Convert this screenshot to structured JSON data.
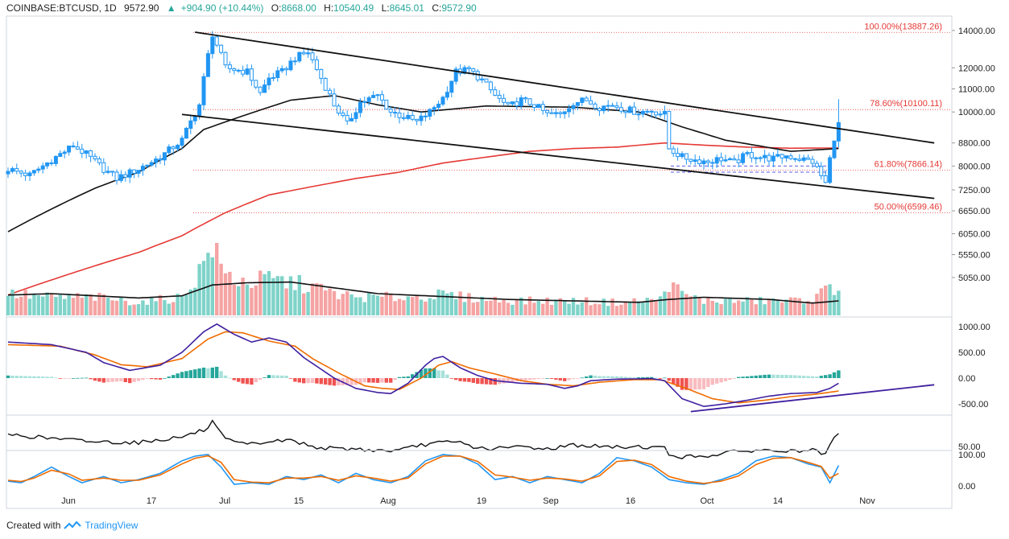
{
  "header": {
    "symbol": "COINBASE:BTCUSD, 1D",
    "last": "9572.90",
    "change_arrow": "▲",
    "change": "+904.90 (+10.44%)",
    "open_label": "O:",
    "open": "8668.00",
    "high_label": "H:",
    "high": "10540.49",
    "low_label": "L:",
    "low": "8645.01",
    "close_label": "C:",
    "close": "9572.90"
  },
  "footer": {
    "created_with": "Created with",
    "brand": "TradingView"
  },
  "colors": {
    "up": "#2196f3",
    "down": "#2196f3",
    "vol_up": "#7fd3c9",
    "vol_down": "#f5a3a3",
    "ma_short": "#111111",
    "ma_long": "#e53935",
    "macd": "#3f1fa0",
    "signal": "#ef6c00",
    "hist_up": "#26a69a",
    "hist_up_light": "#a6e1da",
    "hist_down": "#ef5350",
    "hist_down_light": "#f8bcc0",
    "stoch_k": "#2196f3",
    "stoch_d": "#ef6c00",
    "fib": "#e53935",
    "trend": "#111111",
    "macd_trend": "#3f1fa0",
    "support": "#5c5ce6"
  },
  "chart_data": {
    "type": "candlestick",
    "interval": "1D",
    "x_tick_labels": [
      "Jun",
      "17",
      "Jul",
      "15",
      "Aug",
      "19",
      "Sep",
      "16",
      "Oct",
      "14",
      "Nov"
    ],
    "price_axis": {
      "scale": "log",
      "ticks": [
        "14000.00",
        "12000.00",
        "11000.00",
        "10000.00",
        "8800.00",
        "8000.00",
        "7250.00",
        "6650.00",
        "6050.00",
        "5550.00",
        "5050.00"
      ]
    },
    "fib_levels": [
      {
        "label": "100.00%(13887.26)",
        "value": 13887.26
      },
      {
        "label": "78.60%(10100.11)",
        "value": 10100.11
      },
      {
        "label": "61.80%(7866.14)",
        "value": 7866.14
      },
      {
        "label": "50.00%(6599.46)",
        "value": 6599.46
      }
    ],
    "price_keypoints": [
      [
        0,
        7900
      ],
      [
        5,
        7700
      ],
      [
        10,
        8200
      ],
      [
        15,
        8700
      ],
      [
        18,
        8400
      ],
      [
        22,
        7900
      ],
      [
        25,
        7600
      ],
      [
        30,
        7900
      ],
      [
        35,
        8300
      ],
      [
        40,
        8900
      ],
      [
        44,
        10300
      ],
      [
        47,
        13800
      ],
      [
        50,
        12000
      ],
      [
        55,
        11800
      ],
      [
        58,
        10800
      ],
      [
        60,
        11500
      ],
      [
        63,
        11800
      ],
      [
        66,
        12500
      ],
      [
        69,
        12800
      ],
      [
        72,
        11500
      ],
      [
        75,
        10300
      ],
      [
        78,
        9500
      ],
      [
        81,
        10400
      ],
      [
        85,
        10700
      ],
      [
        88,
        10000
      ],
      [
        91,
        9800
      ],
      [
        94,
        9600
      ],
      [
        97,
        10000
      ],
      [
        100,
        10600
      ],
      [
        103,
        11800
      ],
      [
        106,
        11900
      ],
      [
        109,
        11400
      ],
      [
        112,
        10700
      ],
      [
        115,
        10200
      ],
      [
        118,
        10500
      ],
      [
        121,
        10300
      ],
      [
        124,
        9900
      ],
      [
        127,
        9900
      ],
      [
        130,
        10400
      ],
      [
        133,
        10500
      ],
      [
        136,
        10200
      ],
      [
        139,
        10300
      ],
      [
        142,
        10100
      ],
      [
        145,
        10000
      ],
      [
        148,
        10050
      ],
      [
        151,
        9900
      ],
      [
        152,
        8600
      ],
      [
        155,
        8300
      ],
      [
        158,
        8200
      ],
      [
        161,
        8150
      ],
      [
        164,
        8250
      ],
      [
        167,
        8100
      ],
      [
        170,
        8400
      ],
      [
        173,
        8300
      ],
      [
        176,
        8250
      ],
      [
        179,
        8350
      ],
      [
        182,
        8250
      ],
      [
        185,
        8150
      ],
      [
        188,
        7450
      ],
      [
        190,
        9000
      ],
      [
        191,
        9572.9
      ]
    ],
    "ma50_keypoints": [
      [
        0,
        6100
      ],
      [
        10,
        6700
      ],
      [
        20,
        7300
      ],
      [
        30,
        7800
      ],
      [
        40,
        8600
      ],
      [
        45,
        9300
      ],
      [
        55,
        9900
      ],
      [
        65,
        10500
      ],
      [
        75,
        10700
      ],
      [
        85,
        10300
      ],
      [
        95,
        10000
      ],
      [
        110,
        10250
      ],
      [
        130,
        10200
      ],
      [
        145,
        10000
      ],
      [
        155,
        9400
      ],
      [
        165,
        8900
      ],
      [
        180,
        8500
      ],
      [
        191,
        8600
      ]
    ],
    "ma200_keypoints": [
      [
        0,
        4700
      ],
      [
        10,
        5000
      ],
      [
        20,
        5300
      ],
      [
        30,
        5600
      ],
      [
        40,
        6000
      ],
      [
        50,
        6600
      ],
      [
        60,
        7100
      ],
      [
        70,
        7350
      ],
      [
        80,
        7600
      ],
      [
        90,
        7800
      ],
      [
        100,
        8100
      ],
      [
        110,
        8300
      ],
      [
        120,
        8500
      ],
      [
        130,
        8600
      ],
      [
        140,
        8650
      ],
      [
        151,
        8800
      ],
      [
        160,
        8720
      ],
      [
        170,
        8650
      ],
      [
        180,
        8610
      ],
      [
        191,
        8620
      ]
    ],
    "trendlines": [
      {
        "name": "upper channel",
        "from": [
          43,
          13900
        ],
        "to": [
          213,
          8800
        ]
      },
      {
        "name": "lower channel",
        "from": [
          40,
          9900
        ],
        "to": [
          213,
          7000
        ]
      }
    ],
    "support_levels": [
      8000,
      7800
    ],
    "volume_keypoints": [
      [
        0,
        0.3
      ],
      [
        10,
        0.25
      ],
      [
        20,
        0.25
      ],
      [
        30,
        0.18
      ],
      [
        40,
        0.25
      ],
      [
        44,
        0.6
      ],
      [
        47,
        1.0
      ],
      [
        50,
        0.55
      ],
      [
        55,
        0.45
      ],
      [
        60,
        0.5
      ],
      [
        65,
        0.45
      ],
      [
        70,
        0.4
      ],
      [
        75,
        0.3
      ],
      [
        80,
        0.25
      ],
      [
        90,
        0.25
      ],
      [
        100,
        0.28
      ],
      [
        110,
        0.22
      ],
      [
        120,
        0.2
      ],
      [
        130,
        0.2
      ],
      [
        140,
        0.18
      ],
      [
        150,
        0.22
      ],
      [
        152,
        0.45
      ],
      [
        155,
        0.3
      ],
      [
        160,
        0.2
      ],
      [
        170,
        0.2
      ],
      [
        180,
        0.2
      ],
      [
        186,
        0.25
      ],
      [
        188,
        0.35
      ],
      [
        191,
        0.4
      ]
    ],
    "volume_ma_keypoints": [
      [
        0,
        0.28
      ],
      [
        10,
        0.3
      ],
      [
        20,
        0.27
      ],
      [
        30,
        0.24
      ],
      [
        40,
        0.27
      ],
      [
        47,
        0.42
      ],
      [
        55,
        0.45
      ],
      [
        65,
        0.46
      ],
      [
        75,
        0.38
      ],
      [
        85,
        0.3
      ],
      [
        100,
        0.26
      ],
      [
        115,
        0.22
      ],
      [
        130,
        0.2
      ],
      [
        145,
        0.18
      ],
      [
        152,
        0.22
      ],
      [
        160,
        0.25
      ],
      [
        175,
        0.22
      ],
      [
        185,
        0.17
      ],
      [
        191,
        0.2
      ]
    ],
    "macd": {
      "axis_ticks": [
        "1000.00",
        "500.00",
        "0.00",
        "-500.00"
      ],
      "macd_keypoints": [
        [
          0,
          700
        ],
        [
          10,
          650
        ],
        [
          18,
          500
        ],
        [
          22,
          300
        ],
        [
          28,
          150
        ],
        [
          35,
          250
        ],
        [
          40,
          500
        ],
        [
          45,
          900
        ],
        [
          48,
          1050
        ],
        [
          52,
          850
        ],
        [
          56,
          700
        ],
        [
          60,
          780
        ],
        [
          64,
          700
        ],
        [
          68,
          400
        ],
        [
          75,
          0
        ],
        [
          80,
          -200
        ],
        [
          85,
          -280
        ],
        [
          88,
          -300
        ],
        [
          92,
          -100
        ],
        [
          96,
          250
        ],
        [
          98,
          380
        ],
        [
          100,
          420
        ],
        [
          104,
          200
        ],
        [
          108,
          50
        ],
        [
          112,
          -50
        ],
        [
          118,
          -100
        ],
        [
          124,
          -120
        ],
        [
          128,
          -200
        ],
        [
          131,
          -150
        ],
        [
          134,
          -50
        ],
        [
          140,
          -20
        ],
        [
          148,
          -10
        ],
        [
          151,
          -50
        ],
        [
          155,
          -400
        ],
        [
          160,
          -550
        ],
        [
          165,
          -500
        ],
        [
          170,
          -430
        ],
        [
          175,
          -350
        ],
        [
          180,
          -300
        ],
        [
          186,
          -280
        ],
        [
          189,
          -200
        ],
        [
          191,
          -100
        ]
      ],
      "signal_keypoints": [
        [
          0,
          650
        ],
        [
          12,
          620
        ],
        [
          20,
          450
        ],
        [
          26,
          260
        ],
        [
          32,
          220
        ],
        [
          40,
          380
        ],
        [
          46,
          760
        ],
        [
          50,
          900
        ],
        [
          54,
          880
        ],
        [
          60,
          720
        ],
        [
          66,
          620
        ],
        [
          70,
          380
        ],
        [
          76,
          100
        ],
        [
          82,
          -150
        ],
        [
          86,
          -200
        ],
        [
          90,
          -220
        ],
        [
          95,
          0
        ],
        [
          99,
          250
        ],
        [
          102,
          320
        ],
        [
          106,
          200
        ],
        [
          112,
          80
        ],
        [
          118,
          -50
        ],
        [
          124,
          -120
        ],
        [
          130,
          -150
        ],
        [
          136,
          -80
        ],
        [
          144,
          -30
        ],
        [
          150,
          -30
        ],
        [
          156,
          -200
        ],
        [
          162,
          -400
        ],
        [
          168,
          -480
        ],
        [
          174,
          -430
        ],
        [
          180,
          -360
        ],
        [
          186,
          -310
        ],
        [
          191,
          -250
        ]
      ],
      "trendline": {
        "from": [
          157,
          -650
        ],
        "to": [
          213,
          -130
        ]
      }
    },
    "rsi": {
      "axis_ticks": [
        "50.00"
      ],
      "keypoints": [
        [
          0,
          65
        ],
        [
          10,
          60
        ],
        [
          20,
          56
        ],
        [
          30,
          55
        ],
        [
          40,
          62
        ],
        [
          46,
          72
        ],
        [
          47,
          80
        ],
        [
          50,
          58
        ],
        [
          55,
          52
        ],
        [
          60,
          56
        ],
        [
          65,
          58
        ],
        [
          70,
          50
        ],
        [
          75,
          47
        ],
        [
          80,
          47
        ],
        [
          85,
          45
        ],
        [
          90,
          45
        ],
        [
          95,
          52
        ],
        [
          100,
          55
        ],
        [
          104,
          55
        ],
        [
          108,
          48
        ],
        [
          112,
          47
        ],
        [
          118,
          50
        ],
        [
          124,
          47
        ],
        [
          130,
          52
        ],
        [
          136,
          50
        ],
        [
          140,
          49
        ],
        [
          145,
          50
        ],
        [
          151,
          48
        ],
        [
          152,
          40
        ],
        [
          155,
          37
        ],
        [
          160,
          38
        ],
        [
          165,
          42
        ],
        [
          170,
          45
        ],
        [
          175,
          45
        ],
        [
          180,
          44
        ],
        [
          185,
          45
        ],
        [
          188,
          40
        ],
        [
          190,
          60
        ],
        [
          191,
          66
        ]
      ]
    },
    "stoch": {
      "axis_ticks": [
        "100.00",
        "0.00"
      ],
      "k_keypoints": [
        [
          0,
          15
        ],
        [
          3,
          10
        ],
        [
          6,
          30
        ],
        [
          10,
          60
        ],
        [
          14,
          30
        ],
        [
          17,
          10
        ],
        [
          22,
          30
        ],
        [
          26,
          10
        ],
        [
          30,
          20
        ],
        [
          35,
          40
        ],
        [
          40,
          80
        ],
        [
          43,
          95
        ],
        [
          46,
          100
        ],
        [
          49,
          60
        ],
        [
          52,
          5
        ],
        [
          56,
          10
        ],
        [
          60,
          5
        ],
        [
          64,
          30
        ],
        [
          68,
          20
        ],
        [
          72,
          35
        ],
        [
          76,
          10
        ],
        [
          80,
          40
        ],
        [
          84,
          20
        ],
        [
          88,
          10
        ],
        [
          92,
          30
        ],
        [
          96,
          80
        ],
        [
          100,
          100
        ],
        [
          104,
          95
        ],
        [
          108,
          70
        ],
        [
          112,
          20
        ],
        [
          116,
          30
        ],
        [
          120,
          10
        ],
        [
          124,
          30
        ],
        [
          128,
          20
        ],
        [
          132,
          10
        ],
        [
          136,
          40
        ],
        [
          140,
          90
        ],
        [
          144,
          80
        ],
        [
          148,
          60
        ],
        [
          152,
          20
        ],
        [
          156,
          10
        ],
        [
          160,
          5
        ],
        [
          164,
          20
        ],
        [
          168,
          40
        ],
        [
          172,
          80
        ],
        [
          176,
          95
        ],
        [
          180,
          90
        ],
        [
          184,
          70
        ],
        [
          187,
          60
        ],
        [
          189,
          10
        ],
        [
          191,
          65
        ]
      ],
      "d_keypoints": [
        [
          0,
          18
        ],
        [
          3,
          14
        ],
        [
          6,
          25
        ],
        [
          10,
          50
        ],
        [
          14,
          38
        ],
        [
          17,
          18
        ],
        [
          22,
          25
        ],
        [
          26,
          18
        ],
        [
          30,
          18
        ],
        [
          35,
          35
        ],
        [
          40,
          70
        ],
        [
          43,
          88
        ],
        [
          46,
          96
        ],
        [
          49,
          75
        ],
        [
          52,
          20
        ],
        [
          56,
          12
        ],
        [
          60,
          10
        ],
        [
          64,
          25
        ],
        [
          68,
          25
        ],
        [
          72,
          30
        ],
        [
          76,
          18
        ],
        [
          80,
          32
        ],
        [
          84,
          25
        ],
        [
          88,
          15
        ],
        [
          92,
          25
        ],
        [
          96,
          70
        ],
        [
          100,
          95
        ],
        [
          104,
          95
        ],
        [
          108,
          78
        ],
        [
          112,
          35
        ],
        [
          116,
          28
        ],
        [
          120,
          18
        ],
        [
          124,
          25
        ],
        [
          128,
          22
        ],
        [
          132,
          15
        ],
        [
          136,
          32
        ],
        [
          140,
          78
        ],
        [
          144,
          82
        ],
        [
          148,
          68
        ],
        [
          152,
          30
        ],
        [
          156,
          15
        ],
        [
          160,
          8
        ],
        [
          164,
          15
        ],
        [
          168,
          32
        ],
        [
          172,
          68
        ],
        [
          176,
          88
        ],
        [
          180,
          90
        ],
        [
          184,
          75
        ],
        [
          187,
          62
        ],
        [
          189,
          25
        ],
        [
          191,
          40
        ]
      ]
    }
  }
}
